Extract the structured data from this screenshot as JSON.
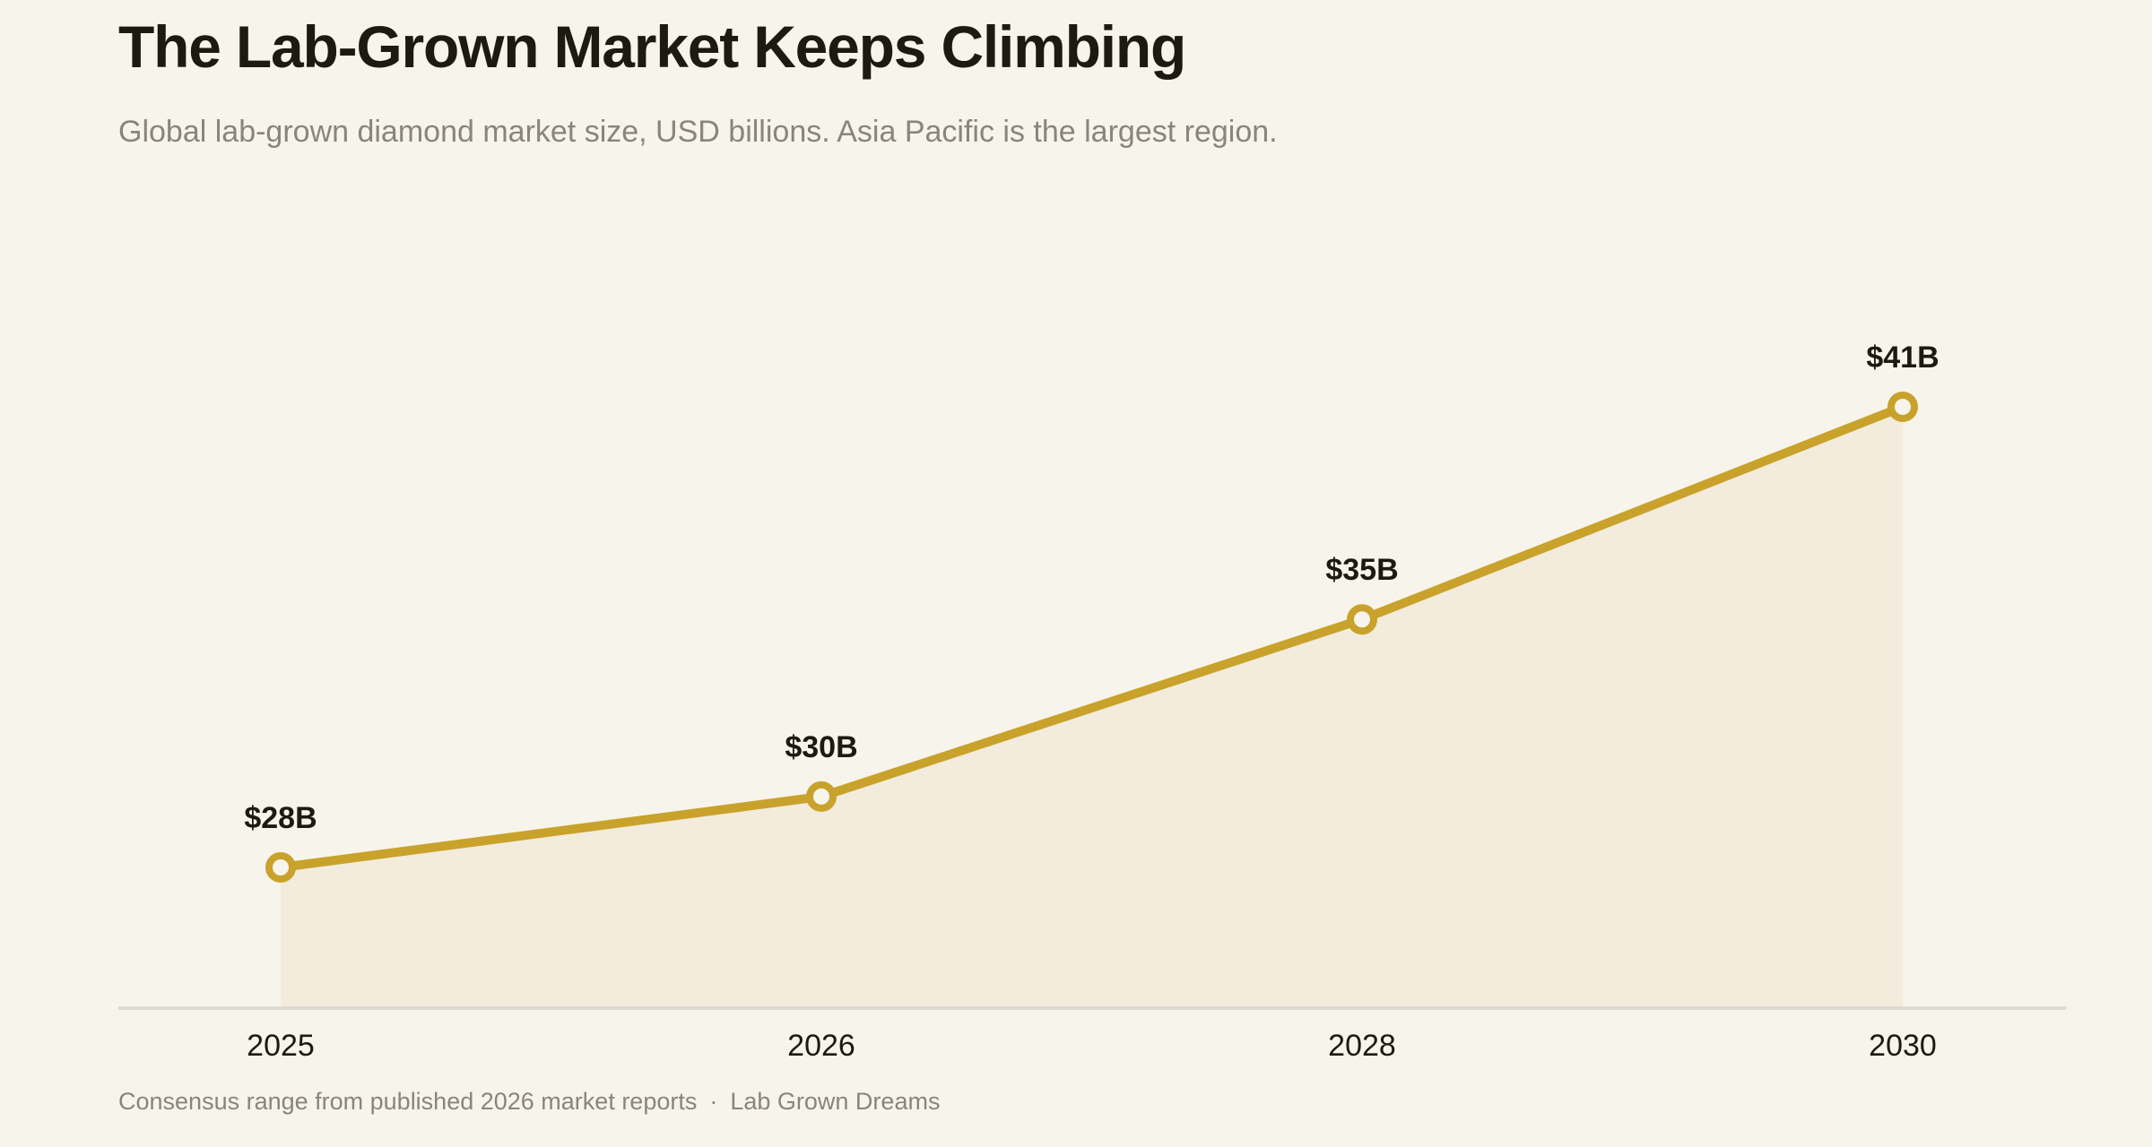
{
  "header": {
    "title": "The Lab-Grown Market Keeps Climbing",
    "subtitle": "Global lab-grown diamond market size, USD billions. Asia Pacific is the largest region."
  },
  "footer": {
    "source": "Consensus range from published 2026 market reports",
    "separator": "·",
    "publisher": "Lab Grown Dreams"
  },
  "colors": {
    "line": "#c9a22b",
    "area": "#f3ecdc",
    "axis": "#dedad0",
    "background": "#f7f4ec"
  },
  "chart_data": {
    "type": "area",
    "x": [
      "2025",
      "2026",
      "2028",
      "2030"
    ],
    "values": [
      28,
      30,
      35,
      41
    ],
    "labels": [
      "$28B",
      "$30B",
      "$35B",
      "$41B"
    ],
    "xlabel": "",
    "ylabel": "",
    "ylim": [
      24,
      44
    ],
    "grid": false,
    "legend": "none"
  }
}
